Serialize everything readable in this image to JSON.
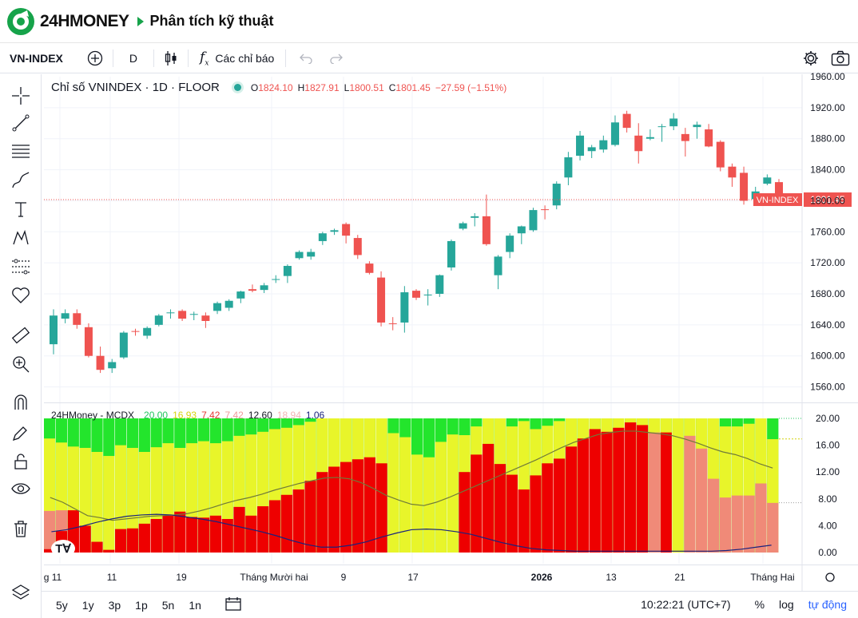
{
  "header": {
    "logo_text": "24HMONEY",
    "breadcrumb": "Phân tích kỹ thuật"
  },
  "toolbar": {
    "symbol": "VN-INDEX",
    "interval": "D",
    "indicators_label": "Các chỉ báo"
  },
  "legend": {
    "title": "Chỉ số VNINDEX · 1D · FLOOR",
    "o_key": "O",
    "o_val": "1824.10",
    "h_key": "H",
    "h_val": "1827.91",
    "l_key": "L",
    "l_val": "1800.51",
    "c_key": "C",
    "c_val": "1801.45",
    "change": "−27.59 (−1.51%)"
  },
  "indicator_legend": {
    "name": "24HMoney - MCDX",
    "values": [
      {
        "text": "20.00",
        "color": "#22c55e"
      },
      {
        "text": "16.93",
        "color": "#d4d40a"
      },
      {
        "text": "7.42",
        "color": "#e53935"
      },
      {
        "text": "7.42",
        "color": "#ef9a9a"
      },
      {
        "text": "12.60",
        "color": "#131722"
      },
      {
        "text": "18.94",
        "color": "#f4b4b4"
      },
      {
        "text": "1.06",
        "color": "#1a237e"
      }
    ]
  },
  "colors": {
    "up": "#26a69a",
    "down": "#ef5350",
    "mcdx_green": "#23e52c",
    "mcdx_yellow": "#e8f52a",
    "mcdx_red": "#ee0000",
    "mcdx_salmon": "#f08a78",
    "axis_text": "#131722"
  },
  "chart_data": [
    {
      "type": "candlestick",
      "title": "Chỉ số VNINDEX · 1D · FLOOR",
      "ylim": [
        1540,
        1960
      ],
      "yticks": [
        "1960.00",
        "1920.00",
        "1880.00",
        "1840.00",
        "1800.00",
        "1760.00",
        "1720.00",
        "1680.00",
        "1640.00",
        "1600.00",
        "1560.00"
      ],
      "last_label": "VN-INDEX",
      "last_value": "1801.45",
      "candles": [
        {
          "o": 1615,
          "h": 1660,
          "l": 1602,
          "c": 1652
        },
        {
          "o": 1648,
          "h": 1660,
          "l": 1642,
          "c": 1655
        },
        {
          "o": 1655,
          "h": 1660,
          "l": 1635,
          "c": 1640
        },
        {
          "o": 1637,
          "h": 1642,
          "l": 1598,
          "c": 1600
        },
        {
          "o": 1600,
          "h": 1612,
          "l": 1578,
          "c": 1582
        },
        {
          "o": 1584,
          "h": 1596,
          "l": 1578,
          "c": 1592
        },
        {
          "o": 1598,
          "h": 1632,
          "l": 1596,
          "c": 1630
        },
        {
          "o": 1632,
          "h": 1635,
          "l": 1626,
          "c": 1631
        },
        {
          "o": 1626,
          "h": 1638,
          "l": 1622,
          "c": 1636
        },
        {
          "o": 1640,
          "h": 1654,
          "l": 1638,
          "c": 1652
        },
        {
          "o": 1655,
          "h": 1660,
          "l": 1648,
          "c": 1656
        },
        {
          "o": 1658,
          "h": 1660,
          "l": 1645,
          "c": 1648
        },
        {
          "o": 1654,
          "h": 1657,
          "l": 1646,
          "c": 1654
        },
        {
          "o": 1652,
          "h": 1656,
          "l": 1636,
          "c": 1645
        },
        {
          "o": 1658,
          "h": 1670,
          "l": 1654,
          "c": 1668
        },
        {
          "o": 1662,
          "h": 1673,
          "l": 1658,
          "c": 1671
        },
        {
          "o": 1674,
          "h": 1684,
          "l": 1668,
          "c": 1683
        },
        {
          "o": 1686,
          "h": 1692,
          "l": 1682,
          "c": 1684
        },
        {
          "o": 1685,
          "h": 1694,
          "l": 1681,
          "c": 1691
        },
        {
          "o": 1698,
          "h": 1704,
          "l": 1694,
          "c": 1699
        },
        {
          "o": 1703,
          "h": 1718,
          "l": 1694,
          "c": 1716
        },
        {
          "o": 1726,
          "h": 1736,
          "l": 1724,
          "c": 1734
        },
        {
          "o": 1728,
          "h": 1738,
          "l": 1724,
          "c": 1734
        },
        {
          "o": 1748,
          "h": 1760,
          "l": 1743,
          "c": 1758
        },
        {
          "o": 1760,
          "h": 1764,
          "l": 1756,
          "c": 1762
        },
        {
          "o": 1770,
          "h": 1772,
          "l": 1745,
          "c": 1755
        },
        {
          "o": 1752,
          "h": 1756,
          "l": 1725,
          "c": 1730
        },
        {
          "o": 1719,
          "h": 1722,
          "l": 1705,
          "c": 1707
        },
        {
          "o": 1701,
          "h": 1709,
          "l": 1638,
          "c": 1643
        },
        {
          "o": 1642,
          "h": 1650,
          "l": 1633,
          "c": 1641
        },
        {
          "o": 1643,
          "h": 1690,
          "l": 1630,
          "c": 1682
        },
        {
          "o": 1684,
          "h": 1686,
          "l": 1672,
          "c": 1675
        },
        {
          "o": 1678,
          "h": 1686,
          "l": 1665,
          "c": 1679
        },
        {
          "o": 1680,
          "h": 1705,
          "l": 1676,
          "c": 1704
        },
        {
          "o": 1714,
          "h": 1750,
          "l": 1710,
          "c": 1748
        },
        {
          "o": 1764,
          "h": 1773,
          "l": 1762,
          "c": 1771
        },
        {
          "o": 1778,
          "h": 1784,
          "l": 1767,
          "c": 1780
        },
        {
          "o": 1780,
          "h": 1808,
          "l": 1742,
          "c": 1744
        },
        {
          "o": 1704,
          "h": 1730,
          "l": 1686,
          "c": 1728
        },
        {
          "o": 1734,
          "h": 1758,
          "l": 1726,
          "c": 1755
        },
        {
          "o": 1758,
          "h": 1768,
          "l": 1744,
          "c": 1767
        },
        {
          "o": 1762,
          "h": 1791,
          "l": 1760,
          "c": 1788
        },
        {
          "o": 1789,
          "h": 1794,
          "l": 1776,
          "c": 1788
        },
        {
          "o": 1794,
          "h": 1825,
          "l": 1789,
          "c": 1822
        },
        {
          "o": 1830,
          "h": 1863,
          "l": 1820,
          "c": 1856
        },
        {
          "o": 1858,
          "h": 1890,
          "l": 1852,
          "c": 1884
        },
        {
          "o": 1864,
          "h": 1872,
          "l": 1855,
          "c": 1869
        },
        {
          "o": 1866,
          "h": 1884,
          "l": 1862,
          "c": 1878
        },
        {
          "o": 1872,
          "h": 1910,
          "l": 1870,
          "c": 1901
        },
        {
          "o": 1912,
          "h": 1916,
          "l": 1888,
          "c": 1894
        },
        {
          "o": 1884,
          "h": 1900,
          "l": 1848,
          "c": 1864
        },
        {
          "o": 1880,
          "h": 1892,
          "l": 1878,
          "c": 1882
        },
        {
          "o": 1895,
          "h": 1899,
          "l": 1876,
          "c": 1896
        },
        {
          "o": 1896,
          "h": 1913,
          "l": 1891,
          "c": 1906
        },
        {
          "o": 1886,
          "h": 1894,
          "l": 1857,
          "c": 1877
        },
        {
          "o": 1895,
          "h": 1902,
          "l": 1880,
          "c": 1898
        },
        {
          "o": 1892,
          "h": 1899,
          "l": 1869,
          "c": 1870
        },
        {
          "o": 1876,
          "h": 1878,
          "l": 1838,
          "c": 1843
        },
        {
          "o": 1844,
          "h": 1848,
          "l": 1818,
          "c": 1830
        },
        {
          "o": 1836,
          "h": 1844,
          "l": 1795,
          "c": 1800
        },
        {
          "o": 1802,
          "h": 1818,
          "l": 1798,
          "c": 1812
        },
        {
          "o": 1822,
          "h": 1834,
          "l": 1820,
          "c": 1830
        },
        {
          "o": 1824,
          "h": 1828,
          "l": 1800,
          "c": 1801
        }
      ]
    },
    {
      "type": "bar",
      "title": "24HMoney - MCDX",
      "ylim": [
        0,
        20
      ],
      "yticks": [
        "20.00",
        "16.00",
        "12.00",
        "8.00",
        "4.00",
        "0.00"
      ],
      "series": [
        {
          "name": "",
          "values": [
            0.5,
            3.2,
            6.3,
            4.0,
            1.6,
            0.4,
            3.5,
            3.6,
            4.3,
            5.0,
            5.5,
            6.1,
            5.3,
            5.2,
            5.5,
            5.0,
            6.8,
            5.5,
            6.9,
            7.8,
            8.6,
            9.4,
            10.7,
            12.0,
            12.8,
            13.5,
            13.9,
            14.2,
            13.3,
            0,
            0,
            0,
            0,
            0,
            0,
            12.0,
            14.6,
            16.2,
            13.2,
            11.6,
            9.4,
            11.5,
            13.3,
            14.0,
            15.8,
            17.0,
            18.4,
            18.0,
            18.6,
            19.4,
            19.0,
            0,
            17.9,
            0,
            0,
            0,
            0,
            0,
            0,
            0,
            0,
            0
          ]
        },
        {
          "name": "",
          "values": [
            6.2,
            6.3,
            3.6,
            0,
            0,
            0,
            0,
            0,
            0,
            0,
            0,
            0,
            0,
            0,
            0,
            0,
            0,
            0,
            0,
            0,
            0,
            0,
            0,
            0,
            0,
            0,
            0,
            0,
            0,
            0,
            0,
            0,
            0,
            0,
            0,
            0,
            0,
            0,
            0,
            0,
            0,
            0,
            0,
            0,
            0,
            0,
            16.4,
            0,
            0,
            0,
            0,
            17.9,
            0,
            0,
            17.4,
            15.5,
            11.0,
            8.2,
            8.5,
            8.5,
            10.3,
            7.4
          ]
        },
        {
          "name": "",
          "values": [
            17.0,
            16.4,
            15.8,
            15.6,
            15.0,
            14.4,
            16.0,
            15.6,
            15.0,
            15.7,
            16.3,
            15.6,
            16.3,
            16.6,
            16.3,
            16.6,
            17.4,
            17.6,
            18.0,
            18.4,
            18.6,
            19.0,
            19.5,
            20,
            20,
            20,
            20,
            20,
            20,
            17.8,
            17.2,
            14.6,
            14.2,
            16.5,
            17.6,
            17.5,
            18.8,
            20,
            20,
            18.8,
            19.6,
            18.4,
            18.9,
            19.6,
            20,
            20,
            20,
            20,
            20,
            20,
            20,
            20,
            20,
            20,
            20,
            20,
            20,
            18.8,
            18.8,
            19.2,
            20,
            16.9
          ]
        },
        {
          "name": "",
          "values": [
            8.2,
            7.5,
            6.5,
            5.5,
            5.2,
            4.8,
            5.0,
            5.2,
            5.4,
            5.5,
            5.6,
            5.8,
            6.2,
            6.7,
            7.3,
            7.8,
            8.2,
            8.7,
            9.3,
            9.8,
            10.3,
            10.7,
            11.1,
            11.2,
            11.0,
            10.4,
            9.5,
            8.5,
            7.8,
            7.2,
            7.0,
            7.5,
            8.2,
            9.0,
            9.8,
            10.6,
            11.4,
            12.2,
            13.0,
            13.8,
            14.7,
            15.6,
            16.4,
            17.0,
            17.6,
            17.9,
            18.1,
            18.1,
            17.9,
            17.7,
            17.4,
            16.9,
            16.3,
            15.6,
            15.0,
            14.6,
            14.0,
            13.2,
            12.6
          ]
        },
        {
          "name": "",
          "values": [
            3.1,
            3.4,
            3.9,
            4.5,
            5.0,
            5.4,
            5.6,
            5.7,
            5.6,
            5.3,
            5.0,
            4.6,
            4.1,
            3.6,
            3.1,
            2.5,
            1.8,
            1.2,
            0.8,
            0.8,
            1.1,
            1.6,
            2.3,
            2.9,
            3.4,
            3.5,
            3.4,
            3.1,
            2.7,
            2.1,
            1.5,
            1.0,
            0.6,
            0.4,
            0.3,
            0.2,
            0.2,
            0.2,
            0.2,
            0.2,
            0.2,
            0.2,
            0.2,
            0.2,
            0.2,
            0.3,
            0.5,
            0.8,
            1.1
          ]
        }
      ]
    }
  ],
  "x_axis": {
    "labels": [
      "g 11",
      "11",
      "19",
      "Tháng Mười hai",
      "9",
      "17",
      "2026",
      "13",
      "21",
      "Tháng Hai"
    ]
  },
  "bottom": {
    "ranges": [
      "5y",
      "1y",
      "3p",
      "1p",
      "5n",
      "1n"
    ],
    "time": "10:22:21 (UTC+7)",
    "percent": "%",
    "log": "log",
    "auto": "tự động"
  }
}
